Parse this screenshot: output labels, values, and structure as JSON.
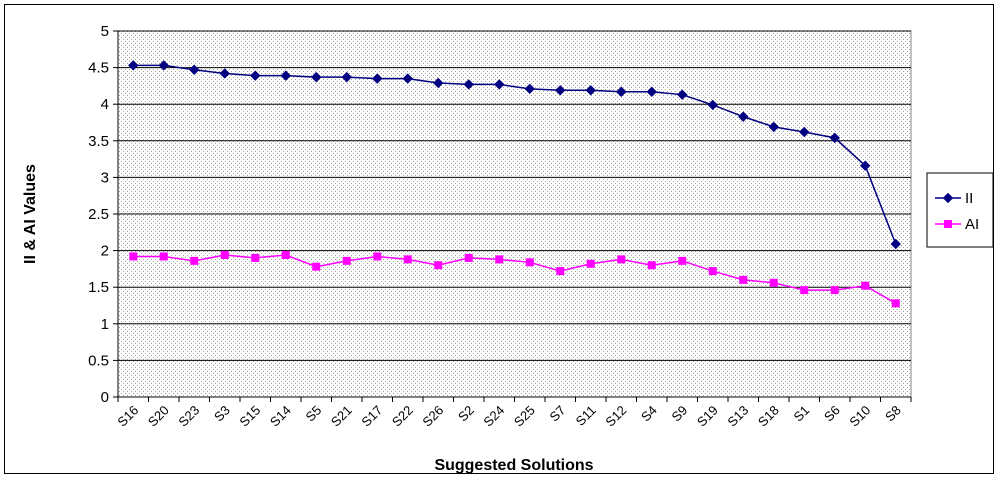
{
  "chart_data": {
    "type": "line",
    "xlabel": "Suggested Solutions",
    "ylabel": "II & AI Values",
    "ylim": [
      0,
      5
    ],
    "yticks": [
      0,
      0.5,
      1,
      1.5,
      2,
      2.5,
      3,
      3.5,
      4,
      4.5,
      5
    ],
    "ytick_labels": [
      "0",
      "0.5",
      "1",
      "1.5",
      "2",
      "2.5",
      "3",
      "3.5",
      "4",
      "4.5",
      "5"
    ],
    "grid": true,
    "legend_position": "right",
    "categories": [
      "S16",
      "S20",
      "S23",
      "S3",
      "S15",
      "S14",
      "S5",
      "S21",
      "S17",
      "S22",
      "S26",
      "S2",
      "S24",
      "S25",
      "S7",
      "S11",
      "S12",
      "S4",
      "S9",
      "S19",
      "S13",
      "S18",
      "S1",
      "S6",
      "S10",
      "S8"
    ],
    "series": [
      {
        "name": "II",
        "color": "#000080",
        "marker": "diamond",
        "values": [
          4.53,
          4.53,
          4.47,
          4.42,
          4.39,
          4.39,
          4.37,
          4.37,
          4.35,
          4.35,
          4.29,
          4.27,
          4.27,
          4.21,
          4.19,
          4.19,
          4.17,
          4.17,
          4.13,
          3.99,
          3.83,
          3.69,
          3.62,
          3.54,
          3.16,
          2.09
        ]
      },
      {
        "name": "AI",
        "color": "#ff00ff",
        "marker": "square",
        "values": [
          1.92,
          1.92,
          1.86,
          1.94,
          1.9,
          1.94,
          1.78,
          1.86,
          1.92,
          1.88,
          1.8,
          1.9,
          1.88,
          1.84,
          1.72,
          1.82,
          1.88,
          1.8,
          1.86,
          1.72,
          1.6,
          1.56,
          1.46,
          1.46,
          1.52,
          1.28
        ]
      }
    ]
  }
}
